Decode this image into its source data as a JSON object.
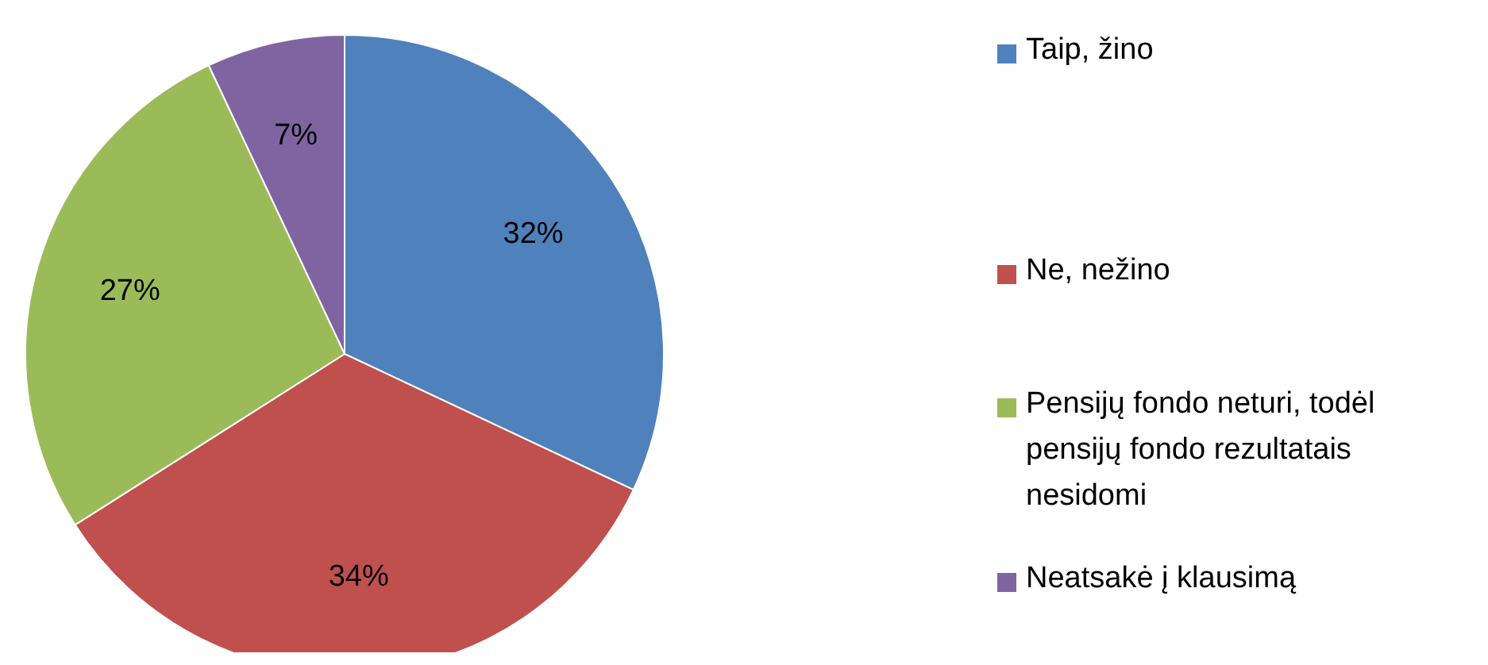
{
  "chart_data": {
    "type": "pie",
    "categories": [
      "Taip, žino",
      "Ne, nežino",
      "Pensijų fondo neturi, todėl pensijų fondo rezultatais nesidomi",
      "Neatsakė į klausimą"
    ],
    "values": [
      32,
      34,
      27,
      7
    ],
    "colors": [
      "#4f81bd",
      "#c0504d",
      "#9bbb59",
      "#8064a2"
    ],
    "value_labels": [
      "32%",
      "34%",
      "27%",
      "7%"
    ],
    "legend": "right"
  }
}
